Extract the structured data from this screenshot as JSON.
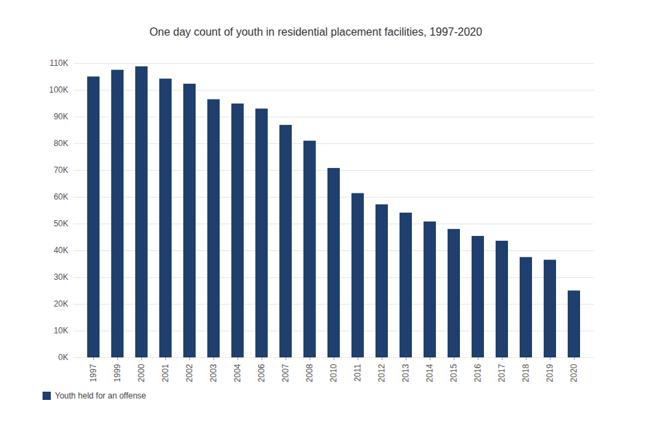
{
  "chart_data": {
    "type": "bar",
    "title": "One day count of youth in residential placement facilities, 1997-2020",
    "categories": [
      "1997",
      "1999",
      "2000",
      "2001",
      "2002",
      "2003",
      "2004",
      "2006",
      "2007",
      "2008",
      "2010",
      "2011",
      "2012",
      "2013",
      "2014",
      "2015",
      "2016",
      "2017",
      "2018",
      "2019",
      "2020"
    ],
    "series": [
      {
        "name": "Youth held for an offense",
        "color": "#1f3f6e",
        "values": [
          105000,
          107500,
          108800,
          104200,
          102300,
          96500,
          94900,
          93000,
          86900,
          81000,
          70800,
          61400,
          57200,
          54100,
          50800,
          48000,
          45400,
          43600,
          37500,
          36500,
          25000
        ]
      }
    ],
    "ylim": [
      0,
      110000
    ],
    "yticks": [
      {
        "value": 0,
        "label": "0K"
      },
      {
        "value": 10000,
        "label": "10K"
      },
      {
        "value": 20000,
        "label": "20K"
      },
      {
        "value": 30000,
        "label": "30K"
      },
      {
        "value": 40000,
        "label": "40K"
      },
      {
        "value": 50000,
        "label": "50K"
      },
      {
        "value": 60000,
        "label": "60K"
      },
      {
        "value": 70000,
        "label": "70K"
      },
      {
        "value": 80000,
        "label": "80K"
      },
      {
        "value": 90000,
        "label": "90K"
      },
      {
        "value": 100000,
        "label": "100K"
      },
      {
        "value": 110000,
        "label": "110K"
      }
    ],
    "grid": true,
    "legend": "bottom-left"
  }
}
